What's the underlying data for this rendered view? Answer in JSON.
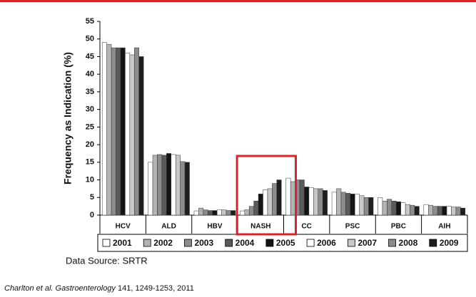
{
  "chart_data": {
    "type": "bar",
    "y_label": "Frequency as Indication (%)",
    "categories": [
      "HCV",
      "ALD",
      "HBV",
      "NASH",
      "CC",
      "PSC",
      "PBC",
      "AIH"
    ],
    "series": [
      {
        "name": "2001",
        "color": "#ffffff",
        "values": [
          49,
          15,
          1.2,
          1.2,
          10.5,
          6.5,
          5,
          3
        ]
      },
      {
        "name": "2002",
        "color": "#b4b4b4",
        "values": [
          48.5,
          17,
          2,
          1.5,
          9.5,
          7.5,
          4,
          2.8
        ]
      },
      {
        "name": "2003",
        "color": "#8c8c8c",
        "values": [
          47.5,
          17.2,
          1.5,
          2.5,
          10,
          6.5,
          4.5,
          2.5
        ]
      },
      {
        "name": "2004",
        "color": "#5a5a5a",
        "values": [
          47.5,
          17,
          1.3,
          4,
          10,
          6.2,
          4,
          2.5
        ]
      },
      {
        "name": "2005",
        "color": "#141414",
        "values": [
          47.5,
          17.5,
          1.3,
          6,
          8,
          6,
          3.8,
          2.5
        ]
      },
      {
        "name": "2006",
        "color": "#ffffff",
        "values": [
          46,
          17.2,
          1.5,
          7.2,
          7.8,
          6,
          3.5,
          2.5
        ]
      },
      {
        "name": "2007",
        "color": "#c8c8c8",
        "values": [
          45.5,
          17,
          1.5,
          7.5,
          7.5,
          5.5,
          3,
          2.3
        ]
      },
      {
        "name": "2008",
        "color": "#8c8c8c",
        "values": [
          47.5,
          15.2,
          1.3,
          9,
          7.5,
          5,
          2.8,
          2.3
        ]
      },
      {
        "name": "2009",
        "color": "#1e1e1e",
        "values": [
          45,
          15,
          1.3,
          10,
          7,
          5,
          2.5,
          2
        ]
      }
    ],
    "ylim": [
      0,
      55
    ],
    "yticks": [
      0,
      5,
      10,
      15,
      20,
      25,
      30,
      35,
      40,
      45,
      50,
      55
    ],
    "grid": false,
    "legend": "bottom"
  },
  "source": "Data Source: SRTR",
  "citation": {
    "authors": "Charlton et al.",
    "journal": "Gastroenterology",
    "details": "141, 1249-1253, 2011"
  }
}
